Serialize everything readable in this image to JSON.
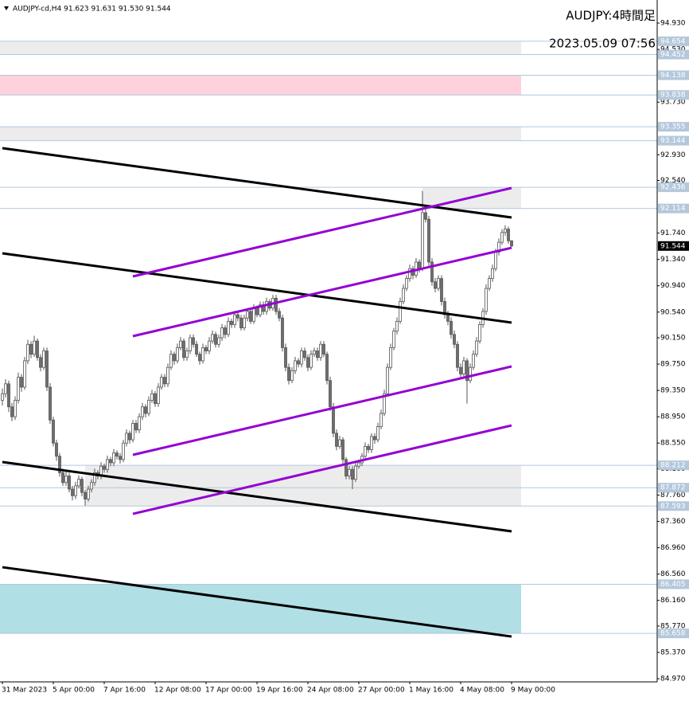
{
  "chart_data": {
    "type": "candlestick",
    "title": "AUDJPY:4時間足",
    "subtitle": "2023.05.09 07:56",
    "header": "AUDJPY-cd,H4  91.623 91.631 91.530 91.544",
    "up_color": "#ffffff",
    "down_color": "#6e6e6e",
    "wick_color": "#555555",
    "categories": [
      "31 Mar 2023",
      null,
      null,
      null,
      null,
      null,
      null,
      null,
      null,
      null,
      null,
      null,
      null,
      null,
      null,
      null,
      "5 Apr 00:00",
      null,
      null,
      null,
      null,
      null,
      null,
      null,
      null,
      null,
      null,
      null,
      null,
      null,
      null,
      null,
      "7 Apr 16:00",
      null,
      null,
      null,
      null,
      null,
      null,
      null,
      null,
      null,
      null,
      null,
      null,
      null,
      null,
      null,
      "12 Apr 08:00",
      null,
      null,
      null,
      null,
      null,
      null,
      null,
      null,
      null,
      null,
      null,
      null,
      null,
      null,
      null,
      "17 Apr 00:00",
      null,
      null,
      null,
      null,
      null,
      null,
      null,
      null,
      null,
      null,
      null,
      null,
      null,
      null,
      null,
      "19 Apr 16:00",
      null,
      null,
      null,
      null,
      null,
      null,
      null,
      null,
      null,
      null,
      null,
      null,
      null,
      null,
      null,
      "24 Apr 08:00",
      null,
      null,
      null,
      null,
      null,
      null,
      null,
      null,
      null,
      null,
      null,
      null,
      null,
      null,
      null,
      "27 Apr 00:00",
      null,
      null,
      null,
      null,
      null,
      null,
      null,
      null,
      null,
      null,
      null,
      null,
      null,
      null,
      null,
      "1 May 16:00",
      null,
      null,
      null,
      null,
      null,
      null,
      null,
      null,
      null,
      null,
      null,
      null,
      null,
      null,
      null,
      "4 May 08:00",
      null,
      null,
      null,
      null,
      null,
      null,
      null,
      null,
      null,
      null,
      null,
      null,
      null,
      null,
      null,
      "9 May 00:00"
    ],
    "candles": [
      [
        89.2,
        89.38,
        89.12,
        89.3
      ],
      [
        89.3,
        89.52,
        89.24,
        89.45
      ],
      [
        89.45,
        89.5,
        89.02,
        89.1
      ],
      [
        89.1,
        89.16,
        88.88,
        88.95
      ],
      [
        88.95,
        89.26,
        88.9,
        89.2
      ],
      [
        89.2,
        89.62,
        89.15,
        89.55
      ],
      [
        89.55,
        89.6,
        89.33,
        89.4
      ],
      [
        89.4,
        89.86,
        89.36,
        89.8
      ],
      [
        89.8,
        90.12,
        89.75,
        90.05
      ],
      [
        90.05,
        90.1,
        89.84,
        89.9
      ],
      [
        89.9,
        90.18,
        89.86,
        90.1
      ],
      [
        90.1,
        90.14,
        89.8,
        89.85
      ],
      [
        89.85,
        89.9,
        89.64,
        89.7
      ],
      [
        89.7,
        90.0,
        89.66,
        89.95
      ],
      [
        89.95,
        90.0,
        89.34,
        89.4
      ],
      [
        89.4,
        89.46,
        88.84,
        88.9
      ],
      [
        88.9,
        88.95,
        88.5,
        88.55
      ],
      [
        88.55,
        88.6,
        88.28,
        88.35
      ],
      [
        88.35,
        88.4,
        88.04,
        88.1
      ],
      [
        88.1,
        88.16,
        87.9,
        87.95
      ],
      [
        87.95,
        88.12,
        87.9,
        88.05
      ],
      [
        88.05,
        88.1,
        87.8,
        87.85
      ],
      [
        87.85,
        87.9,
        87.68,
        87.75
      ],
      [
        87.75,
        87.96,
        87.7,
        87.9
      ],
      [
        87.9,
        88.06,
        87.86,
        88.0
      ],
      [
        88.0,
        88.04,
        87.74,
        87.8
      ],
      [
        87.8,
        87.84,
        87.6,
        87.7
      ],
      [
        87.7,
        87.9,
        87.66,
        87.85
      ],
      [
        87.85,
        88.0,
        87.8,
        87.95
      ],
      [
        87.95,
        88.16,
        87.9,
        88.1
      ],
      [
        88.1,
        88.14,
        88.0,
        88.05
      ],
      [
        88.05,
        88.26,
        88.0,
        88.2
      ],
      [
        88.2,
        88.24,
        88.1,
        88.15
      ],
      [
        88.15,
        88.36,
        88.1,
        88.3
      ],
      [
        88.3,
        88.34,
        88.2,
        88.25
      ],
      [
        88.25,
        88.46,
        88.2,
        88.4
      ],
      [
        88.4,
        88.44,
        88.3,
        88.35
      ],
      [
        88.35,
        88.4,
        88.24,
        88.3
      ],
      [
        88.3,
        88.6,
        88.26,
        88.55
      ],
      [
        88.55,
        88.76,
        88.5,
        88.7
      ],
      [
        88.7,
        88.74,
        88.54,
        88.6
      ],
      [
        88.6,
        88.9,
        88.56,
        88.85
      ],
      [
        88.85,
        88.9,
        88.7,
        88.75
      ],
      [
        88.75,
        89.0,
        88.7,
        88.95
      ],
      [
        88.95,
        89.16,
        88.9,
        89.1
      ],
      [
        89.1,
        89.14,
        88.94,
        89.0
      ],
      [
        89.0,
        89.26,
        88.96,
        89.2
      ],
      [
        89.2,
        89.36,
        89.16,
        89.3
      ],
      [
        89.3,
        89.34,
        89.1,
        89.15
      ],
      [
        89.15,
        89.46,
        89.1,
        89.4
      ],
      [
        89.4,
        89.6,
        89.36,
        89.55
      ],
      [
        89.55,
        89.6,
        89.4,
        89.45
      ],
      [
        89.45,
        89.76,
        89.4,
        89.7
      ],
      [
        89.7,
        89.96,
        89.66,
        89.9
      ],
      [
        89.9,
        89.94,
        89.74,
        89.8
      ],
      [
        89.8,
        90.06,
        89.76,
        90.0
      ],
      [
        90.0,
        90.16,
        89.96,
        90.1
      ],
      [
        90.1,
        90.14,
        89.8,
        89.85
      ],
      [
        89.85,
        90.0,
        89.8,
        89.95
      ],
      [
        89.95,
        90.2,
        89.9,
        90.15
      ],
      [
        90.15,
        90.2,
        90.0,
        90.05
      ],
      [
        90.05,
        90.1,
        89.86,
        89.9
      ],
      [
        89.9,
        89.94,
        89.74,
        89.8
      ],
      [
        89.8,
        90.06,
        89.76,
        90.0
      ],
      [
        90.0,
        90.04,
        89.9,
        89.95
      ],
      [
        89.95,
        90.16,
        89.9,
        90.1
      ],
      [
        90.1,
        90.26,
        90.06,
        90.2
      ],
      [
        90.2,
        90.24,
        90.0,
        90.05
      ],
      [
        90.05,
        90.2,
        90.0,
        90.15
      ],
      [
        90.15,
        90.36,
        90.1,
        90.3
      ],
      [
        90.3,
        90.34,
        90.14,
        90.2
      ],
      [
        90.2,
        90.46,
        90.16,
        90.4
      ],
      [
        90.4,
        90.44,
        90.3,
        90.35
      ],
      [
        90.35,
        90.56,
        90.3,
        90.5
      ],
      [
        90.5,
        90.54,
        90.4,
        90.45
      ],
      [
        90.45,
        90.5,
        90.26,
        90.3
      ],
      [
        90.3,
        90.5,
        90.26,
        90.45
      ],
      [
        90.45,
        90.6,
        90.4,
        90.55
      ],
      [
        90.55,
        90.6,
        90.36,
        90.4
      ],
      [
        90.4,
        90.66,
        90.36,
        90.6
      ],
      [
        90.6,
        90.64,
        90.46,
        90.5
      ],
      [
        90.5,
        90.7,
        90.46,
        90.65
      ],
      [
        90.65,
        90.7,
        90.5,
        90.55
      ],
      [
        90.55,
        90.76,
        90.5,
        90.7
      ],
      [
        90.7,
        90.74,
        90.56,
        90.6
      ],
      [
        90.6,
        90.8,
        90.56,
        90.75
      ],
      [
        90.75,
        90.8,
        90.5,
        90.55
      ],
      [
        90.55,
        90.6,
        90.4,
        90.45
      ],
      [
        90.45,
        90.5,
        89.94,
        90.0
      ],
      [
        90.0,
        90.06,
        89.64,
        89.7
      ],
      [
        89.7,
        89.76,
        89.44,
        89.5
      ],
      [
        89.5,
        89.7,
        89.46,
        89.65
      ],
      [
        89.65,
        89.86,
        89.6,
        89.8
      ],
      [
        89.8,
        89.84,
        89.7,
        89.75
      ],
      [
        89.75,
        90.0,
        89.7,
        89.95
      ],
      [
        89.95,
        90.0,
        89.8,
        89.85
      ],
      [
        89.85,
        89.9,
        89.64,
        89.7
      ],
      [
        89.7,
        89.96,
        89.66,
        89.9
      ],
      [
        89.9,
        90.0,
        89.86,
        89.95
      ],
      [
        89.95,
        90.0,
        89.8,
        89.85
      ],
      [
        89.85,
        90.1,
        89.8,
        90.05
      ],
      [
        90.05,
        90.1,
        89.86,
        89.9
      ],
      [
        89.9,
        89.94,
        89.44,
        89.5
      ],
      [
        89.5,
        89.56,
        89.04,
        89.1
      ],
      [
        89.1,
        89.16,
        88.64,
        88.7
      ],
      [
        88.7,
        88.76,
        88.44,
        88.5
      ],
      [
        88.5,
        88.66,
        88.46,
        88.6
      ],
      [
        88.6,
        88.64,
        88.24,
        88.3
      ],
      [
        88.3,
        88.34,
        88.0,
        88.05
      ],
      [
        88.05,
        88.2,
        88.0,
        88.15
      ],
      [
        88.15,
        88.2,
        87.85,
        88.0
      ],
      [
        88.0,
        88.26,
        87.96,
        88.2
      ],
      [
        88.2,
        88.3,
        88.16,
        88.25
      ],
      [
        88.25,
        88.4,
        88.2,
        88.35
      ],
      [
        88.35,
        88.56,
        88.3,
        88.5
      ],
      [
        88.5,
        88.54,
        88.4,
        88.45
      ],
      [
        88.45,
        88.7,
        88.4,
        88.65
      ],
      [
        88.65,
        88.7,
        88.54,
        88.6
      ],
      [
        88.6,
        88.86,
        88.56,
        88.8
      ],
      [
        88.8,
        89.06,
        88.76,
        89.0
      ],
      [
        89.0,
        89.36,
        88.96,
        89.3
      ],
      [
        89.3,
        89.76,
        89.26,
        89.7
      ],
      [
        89.7,
        90.06,
        89.66,
        90.0
      ],
      [
        90.0,
        90.3,
        89.96,
        90.25
      ],
      [
        90.25,
        90.46,
        90.2,
        90.4
      ],
      [
        90.4,
        90.76,
        90.36,
        90.7
      ],
      [
        90.7,
        90.96,
        90.66,
        90.9
      ],
      [
        90.9,
        91.1,
        90.86,
        91.05
      ],
      [
        91.05,
        91.26,
        91.0,
        91.2
      ],
      [
        91.2,
        91.24,
        91.04,
        91.1
      ],
      [
        91.1,
        91.36,
        91.06,
        91.3
      ],
      [
        91.3,
        91.34,
        91.14,
        91.2
      ],
      [
        91.2,
        92.38,
        91.16,
        92.05
      ],
      [
        92.05,
        92.12,
        91.9,
        91.95
      ],
      [
        91.95,
        92.0,
        91.24,
        91.3
      ],
      [
        91.3,
        91.36,
        90.94,
        91.0
      ],
      [
        91.0,
        91.06,
        90.84,
        90.9
      ],
      [
        90.9,
        91.1,
        90.86,
        91.05
      ],
      [
        91.05,
        91.1,
        90.64,
        90.7
      ],
      [
        90.7,
        90.76,
        90.44,
        90.5
      ],
      [
        90.5,
        90.56,
        90.34,
        90.4
      ],
      [
        90.4,
        90.46,
        90.14,
        90.2
      ],
      [
        90.2,
        90.26,
        89.99,
        90.05
      ],
      [
        90.05,
        90.1,
        89.64,
        89.7
      ],
      [
        89.7,
        89.76,
        89.54,
        89.6
      ],
      [
        89.6,
        89.86,
        89.56,
        89.8
      ],
      [
        89.8,
        89.84,
        89.15,
        89.5
      ],
      [
        89.5,
        89.76,
        89.46,
        89.7
      ],
      [
        89.7,
        89.96,
        89.66,
        89.9
      ],
      [
        89.9,
        90.16,
        89.86,
        90.1
      ],
      [
        90.1,
        90.4,
        90.06,
        90.35
      ],
      [
        90.35,
        90.6,
        90.3,
        90.55
      ],
      [
        90.55,
        90.96,
        90.5,
        90.9
      ],
      [
        90.9,
        91.1,
        90.86,
        91.05
      ],
      [
        91.05,
        91.26,
        91.0,
        91.2
      ],
      [
        91.2,
        91.5,
        91.16,
        91.45
      ],
      [
        91.45,
        91.66,
        91.4,
        91.6
      ],
      [
        91.6,
        91.8,
        91.56,
        91.75
      ],
      [
        91.75,
        91.86,
        91.7,
        91.8
      ],
      [
        91.8,
        91.84,
        91.58,
        91.623
      ],
      [
        91.623,
        91.631,
        91.53,
        91.544
      ]
    ],
    "ylim": [
      84.922,
      95.281
    ],
    "yticks": [
      {
        "value": 94.93,
        "label": "94.930"
      },
      {
        "value": 94.53,
        "label": "94.530"
      },
      {
        "value": 93.73,
        "label": "93.730"
      },
      {
        "value": 92.93,
        "label": "92.930"
      },
      {
        "value": 92.54,
        "label": "92.540"
      },
      {
        "value": 91.74,
        "label": "91.740"
      },
      {
        "value": 91.34,
        "label": "91.340"
      },
      {
        "value": 90.94,
        "label": "90.940"
      },
      {
        "value": 90.54,
        "label": "90.540"
      },
      {
        "value": 90.15,
        "label": "90.150"
      },
      {
        "value": 89.75,
        "label": "89.750"
      },
      {
        "value": 89.35,
        "label": "89.350"
      },
      {
        "value": 88.95,
        "label": "88.950"
      },
      {
        "value": 88.55,
        "label": "88.550"
      },
      {
        "value": 88.16,
        "label": "88.160"
      },
      {
        "value": 87.76,
        "label": "87.760"
      },
      {
        "value": 87.36,
        "label": "87.360"
      },
      {
        "value": 86.96,
        "label": "86.960"
      },
      {
        "value": 86.56,
        "label": "86.560"
      },
      {
        "value": 86.16,
        "label": "86.160"
      },
      {
        "value": 85.77,
        "label": "85.770"
      },
      {
        "value": 85.37,
        "label": "85.370"
      },
      {
        "value": 84.97,
        "label": "84.970"
      }
    ],
    "zones": [
      {
        "top": 94.654,
        "bottom": 94.452,
        "color": "#ececec",
        "start": 0
      },
      {
        "top": 94.138,
        "bottom": 93.838,
        "color": "#ffd1dc",
        "start": 0
      },
      {
        "top": 93.355,
        "bottom": 93.144,
        "color": "#ececec",
        "start": 0
      },
      {
        "top": 92.436,
        "bottom": 92.114,
        "color": "#ececec",
        "start": 132
      },
      {
        "top": 88.212,
        "bottom": 87.593,
        "color": "#ececec",
        "start": 26
      },
      {
        "top": 86.405,
        "bottom": 85.658,
        "color": "#b0dfe5",
        "start": 0
      }
    ],
    "levels": [
      87.872
    ],
    "level_color": "#b4c8dc",
    "trendlines": [
      {
        "color": "#000000",
        "start": [
          0,
          93.03
        ],
        "end": [
          160,
          91.977
        ]
      },
      {
        "color": "#000000",
        "start": [
          0,
          91.433
        ],
        "end": [
          160,
          90.38
        ]
      },
      {
        "color": "#000000",
        "start": [
          0,
          88.262
        ],
        "end": [
          160,
          87.209
        ]
      },
      {
        "color": "#000000",
        "start": [
          0,
          86.664
        ],
        "end": [
          160,
          85.611
        ]
      },
      {
        "color": "#9400d3",
        "start": [
          41,
          91.082
        ],
        "end": [
          160,
          92.425
        ]
      },
      {
        "color": "#9400d3",
        "start": [
          41,
          90.174
        ],
        "end": [
          160,
          91.517
        ]
      },
      {
        "color": "#9400d3",
        "start": [
          41,
          88.371
        ],
        "end": [
          160,
          89.714
        ]
      },
      {
        "color": "#9400d3",
        "start": [
          41,
          87.475
        ],
        "end": [
          160,
          88.818
        ]
      }
    ]
  }
}
